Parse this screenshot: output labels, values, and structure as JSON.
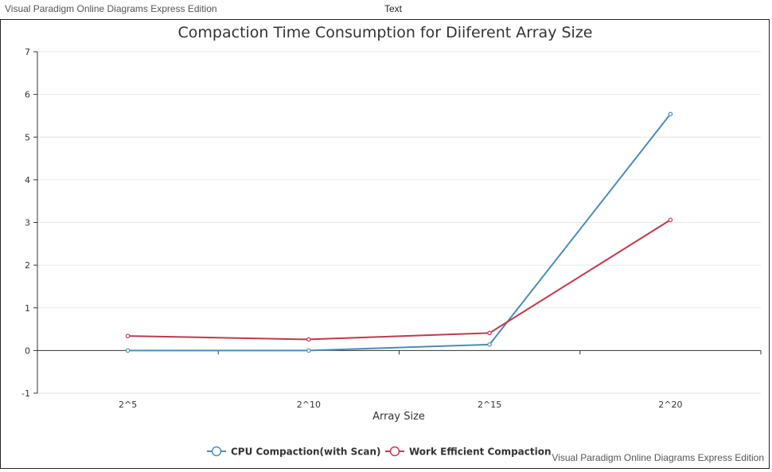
{
  "header": {
    "watermark": "Visual Paradigm Online Diagrams Express Edition",
    "text": "Text"
  },
  "footer": {
    "watermark": "Visual Paradigm Online Diagrams Express Edition"
  },
  "colors": {
    "cpu": "#4a8db7",
    "work": "#c0394e",
    "grid": "#e6e6e6",
    "axis": "#333333"
  },
  "chart_data": {
    "type": "line",
    "title": "Compaction Time Consumption for Diiferent Array Size",
    "xlabel": "Array Size",
    "ylabel": "",
    "categories": [
      "2^5",
      "2^10",
      "2^15",
      "2^20"
    ],
    "ylim": [
      -1,
      7
    ],
    "yticks": [
      "7",
      "6",
      "5",
      "4",
      "3",
      "2",
      "1",
      "0",
      "-1"
    ],
    "grid": true,
    "legend_position": "bottom-center",
    "series": [
      {
        "name": "CPU Compaction(with Scan)",
        "color": "#4a8db7",
        "values": [
          0.0,
          0.0,
          0.14,
          5.54
        ]
      },
      {
        "name": "Work Efficient Compaction",
        "color": "#c0394e",
        "values": [
          0.34,
          0.26,
          0.41,
          3.06
        ]
      }
    ]
  }
}
